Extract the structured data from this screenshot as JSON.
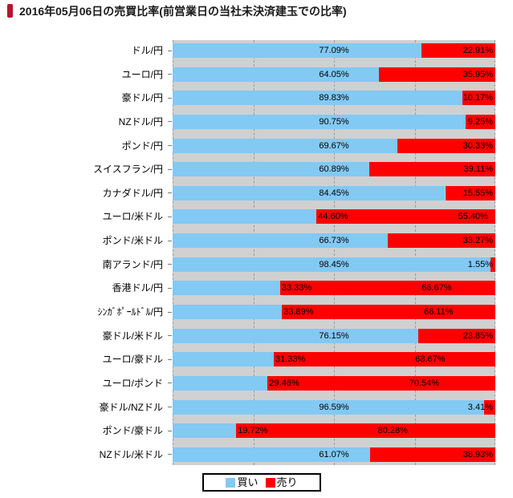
{
  "page": {
    "title": "2016年05月06日の売買比率(前営業日の当社未決済建玉での比率)",
    "accent_color": "#B0182C"
  },
  "legend": {
    "items": [
      {
        "label": "買い",
        "color": "#82C9F3"
      },
      {
        "label": "売り",
        "color": "#FF0000"
      }
    ]
  },
  "chart_data": {
    "type": "bar",
    "orientation": "horizontal",
    "stacked": true,
    "title": "2016年05月06日の売買比率(前営業日の当社未決済建玉での比率)",
    "xlim": [
      0,
      100
    ],
    "unit": "%",
    "grid": true,
    "gridline_positions": [
      0,
      25,
      50,
      75,
      100
    ],
    "plot_background": "#D0D0D0",
    "legend_position": "bottom",
    "value_label_format": "0.00%",
    "categories": [
      "ドル/円",
      "ユーロ/円",
      "豪ドル/円",
      "NZドル/円",
      "ポンド/円",
      "スイスフラン/円",
      "カナダドル/円",
      "ユーロ/米ドル",
      "ポンド/米ドル",
      "南アランド/円",
      "香港ドル/円",
      "ｼﾝｶﾞﾎﾟｰﾙﾄﾞﾙ/円",
      "豪ドル/米ドル",
      "ユーロ/豪ドル",
      "ユーロ/ポンド",
      "豪ドル/NZドル",
      "ポンド/豪ドル",
      "NZドル/米ドル"
    ],
    "series": [
      {
        "name": "買い",
        "color": "#82C9F3",
        "values": [
          77.09,
          64.05,
          89.83,
          90.75,
          69.67,
          60.89,
          84.45,
          44.6,
          66.73,
          98.45,
          33.33,
          33.89,
          76.15,
          31.33,
          29.46,
          96.59,
          19.72,
          61.07
        ]
      },
      {
        "name": "売り",
        "color": "#FF0000",
        "values": [
          22.91,
          35.95,
          10.17,
          9.25,
          30.33,
          39.11,
          15.55,
          55.4,
          33.27,
          1.55,
          66.67,
          66.11,
          23.85,
          68.67,
          70.54,
          3.41,
          80.28,
          38.93
        ]
      }
    ]
  }
}
